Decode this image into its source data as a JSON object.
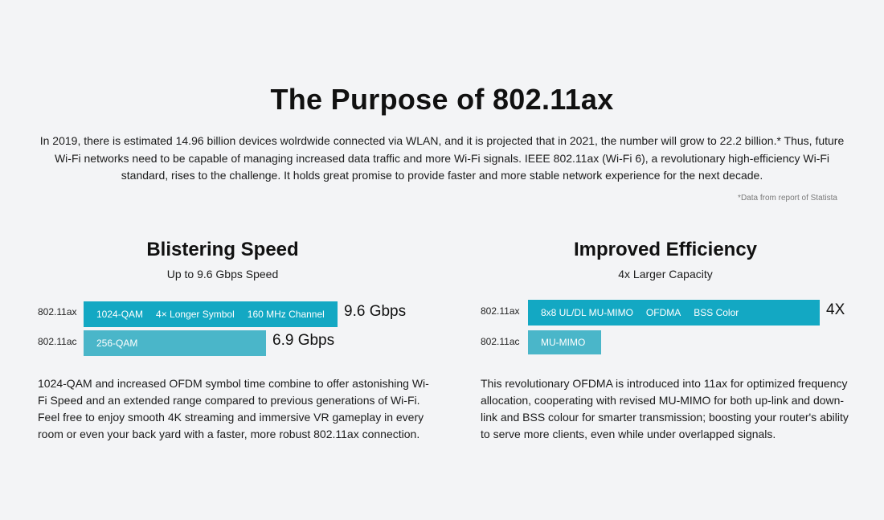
{
  "header": {
    "title": "The Purpose of 802.11ax",
    "intro": "In 2019, there is estimated 14.96 billion devices wolrdwide connected via WLAN, and it is projected that in 2021, the number will grow to 22.2 billion.* Thus, future Wi-Fi networks need to be capable of managing increased data traffic and more Wi-Fi signals. IEEE 802.11ax (Wi-Fi 6), a revolutionary high-efficiency Wi-Fi standard, rises to the challenge. It holds great promise to provide faster and more stable network experience for the next decade.",
    "source_note": "*Data from report of Statista"
  },
  "colors": {
    "primary_bar": "#13a8c3",
    "secondary_bar": "#4ab6c9",
    "background": "#f3f4f6"
  },
  "speed": {
    "title": "Blistering Speed",
    "subtitle": "Up to 9.6 Gbps Speed",
    "description": "1024-QAM and increased OFDM symbol time combine to offer astonishing Wi-Fi Speed and an extended range compared to previous generations of Wi-Fi. Feel free to enjoy smooth 4K streaming and immersive VR gameplay in every room or even your back yard with a faster, more robust 802.11ax connection."
  },
  "efficiency": {
    "title": "Improved Efficiency",
    "subtitle": "4x Larger Capacity",
    "description": "This revolutionary OFDMA is introduced into 11ax for optimized frequency allocation, cooperating with revised MU-MIMO for both up-link and down-link and BSS colour for smarter transmission; boosting your router's ability to serve more clients, even while under overlapped signals."
  },
  "chart_data": [
    {
      "type": "bar",
      "orientation": "horizontal",
      "categories": [
        "802.11ax",
        "802.11ac"
      ],
      "values": [
        9.6,
        6.9
      ],
      "value_labels": [
        "9.6 Gbps",
        "6.9 Gbps"
      ],
      "bar_tags": [
        [
          "1024-QAM",
          "4× Longer Symbol",
          "160 MHz Channel"
        ],
        [
          "256-QAM"
        ]
      ]
    },
    {
      "type": "bar",
      "orientation": "horizontal",
      "categories": [
        "802.11ax",
        "802.11ac"
      ],
      "values": [
        4,
        1
      ],
      "value_labels": [
        "4X",
        ""
      ],
      "bar_tags": [
        [
          "8x8 UL/DL MU-MIMO",
          "OFDMA",
          "BSS Color"
        ],
        [
          "MU-MIMO"
        ]
      ]
    }
  ]
}
